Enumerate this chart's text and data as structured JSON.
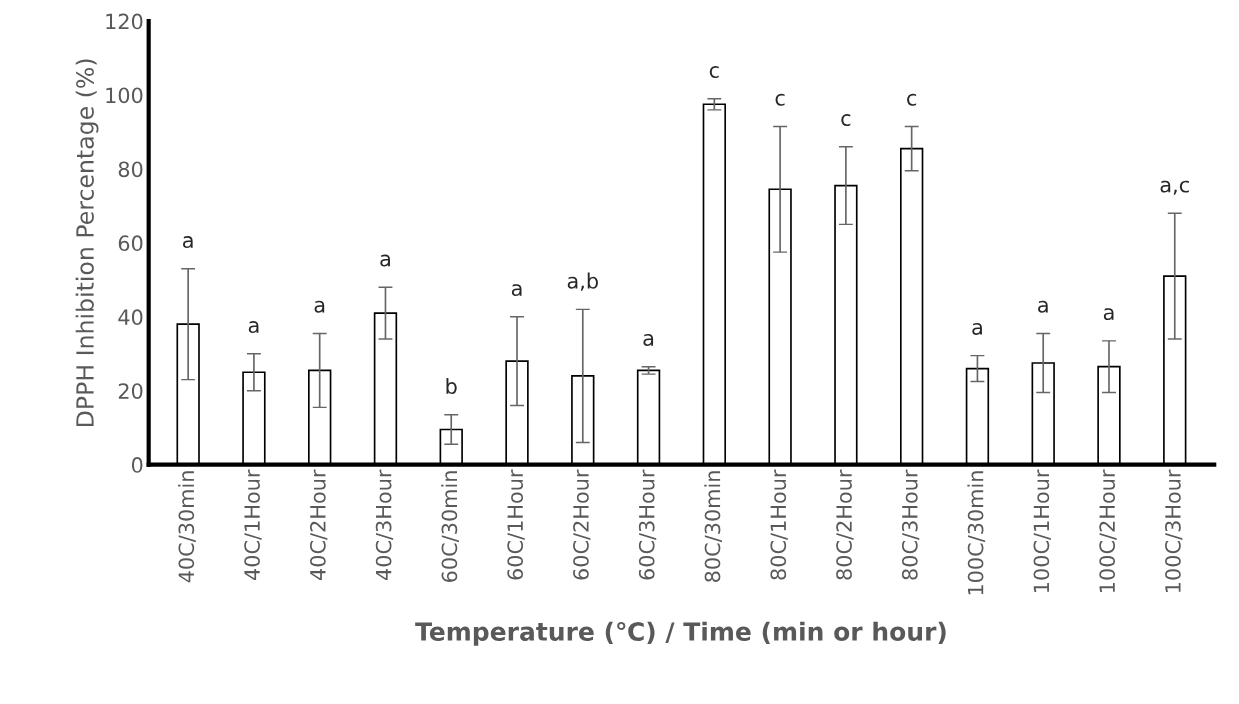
{
  "chart_data": {
    "type": "bar",
    "xlabel": "Temperature (℃) / Time (min or hour)",
    "ylabel": "DPPH Inhibition Percentage (%)",
    "categories": [
      "40C/30min",
      "40C/1Hour",
      "40C/2Hour",
      "40C/3Hour",
      "60C/30min",
      "60C/1Hour",
      "60C/2Hour",
      "60C/3Hour",
      "80C/30min",
      "80C/1Hour",
      "80C/2Hour",
      "80C/3Hour",
      "100C/30min",
      "100C/1Hour",
      "100C/2Hour",
      "100C/3Hour"
    ],
    "values": [
      38,
      25,
      25.5,
      41,
      9.5,
      28,
      24,
      25.5,
      97.5,
      74.5,
      75.5,
      85.5,
      26,
      27.5,
      26.5,
      51
    ],
    "errors": [
      15,
      5,
      10,
      7,
      4,
      12,
      18,
      1,
      1.5,
      17,
      10.5,
      6,
      3.5,
      8,
      7,
      17
    ],
    "color": "#ffffff",
    "ylim": [
      0,
      120
    ],
    "yticks": [
      0,
      20,
      40,
      60,
      80,
      100,
      120
    ],
    "grid": false,
    "annotations": [
      "a",
      "a",
      "a",
      "a",
      "b",
      "a",
      "a,b",
      "a",
      "c",
      "c",
      "c",
      "c",
      "a",
      "a",
      "a",
      "a,c"
    ]
  }
}
